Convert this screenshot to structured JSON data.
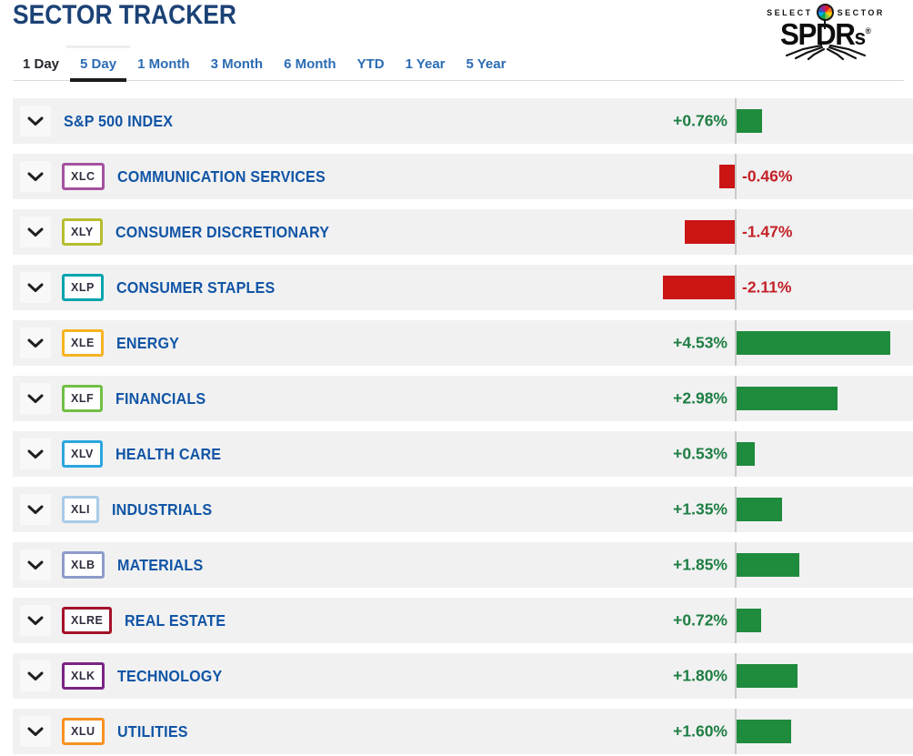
{
  "page": {
    "title": "SECTOR TRACKER"
  },
  "logo": {
    "select": "SELECT",
    "sector": "SECTOR",
    "main": "SPDR",
    "main_small": "s",
    "reg": "®"
  },
  "tabs": [
    {
      "label": "1 Day",
      "dark": true,
      "active": false
    },
    {
      "label": "5 Day",
      "dark": false,
      "active": true
    },
    {
      "label": "1 Month",
      "dark": false,
      "active": false
    },
    {
      "label": "3 Month",
      "dark": false,
      "active": false
    },
    {
      "label": "6 Month",
      "dark": false,
      "active": false
    },
    {
      "label": "YTD",
      "dark": false,
      "active": false
    },
    {
      "label": "1 Year",
      "dark": false,
      "active": false
    },
    {
      "label": "5 Year",
      "dark": false,
      "active": false
    }
  ],
  "colors": {
    "title": "#1b4276",
    "tab_link": "#2b6cb4",
    "active_tab_underline": "#1d1d1d",
    "sector_name": "#1155a5",
    "axis_line": "#c9c9c9",
    "positive_bar": "#1f8b3d",
    "negative_bar": "#cb1414",
    "positive_text": "#1e7e43",
    "negative_text": "#c32127"
  },
  "rows": [
    {
      "ticker": null,
      "name": "S&P 500 INDEX",
      "change": "+0.76%",
      "value": 0.76,
      "badge_color": null
    },
    {
      "ticker": "XLC",
      "name": "COMMUNICATION SERVICES",
      "change": "-0.46%",
      "value": -0.46,
      "badge_color": "#a5519f"
    },
    {
      "ticker": "XLY",
      "name": "CONSUMER DISCRETIONARY",
      "change": "-1.47%",
      "value": -1.47,
      "badge_color": "#b5bd2f"
    },
    {
      "ticker": "XLP",
      "name": "CONSUMER STAPLES",
      "change": "-2.11%",
      "value": -2.11,
      "badge_color": "#00a3ad"
    },
    {
      "ticker": "XLE",
      "name": "ENERGY",
      "change": "+4.53%",
      "value": 4.53,
      "badge_color": "#f6b321"
    },
    {
      "ticker": "XLF",
      "name": "FINANCIALS",
      "change": "+2.98%",
      "value": 2.98,
      "badge_color": "#72bf44"
    },
    {
      "ticker": "XLV",
      "name": "HEALTH CARE",
      "change": "+0.53%",
      "value": 0.53,
      "badge_color": "#2ba6df"
    },
    {
      "ticker": "XLI",
      "name": "INDUSTRIALS",
      "change": "+1.35%",
      "value": 1.35,
      "badge_color": "#a9cbe9"
    },
    {
      "ticker": "XLB",
      "name": "MATERIALS",
      "change": "+1.85%",
      "value": 1.85,
      "badge_color": "#8e9cca"
    },
    {
      "ticker": "XLRE",
      "name": "REAL ESTATE",
      "change": "+0.72%",
      "value": 0.72,
      "badge_color": "#a31229"
    },
    {
      "ticker": "XLK",
      "name": "TECHNOLOGY",
      "change": "+1.80%",
      "value": 1.8,
      "badge_color": "#7c2383"
    },
    {
      "ticker": "XLU",
      "name": "UTILITIES",
      "change": "+1.60%",
      "value": 1.6,
      "badge_color": "#f79123"
    }
  ]
}
